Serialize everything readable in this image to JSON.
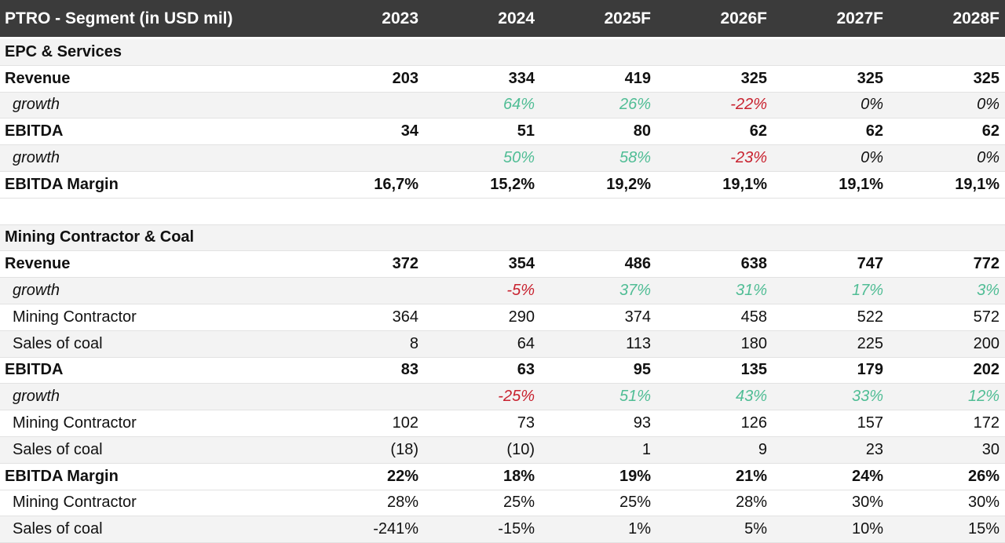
{
  "chart_data": {
    "type": "table",
    "title": "PTRO - Segment (in USD mil)",
    "columns": [
      "2023",
      "2024",
      "2025F",
      "2026F",
      "2027F",
      "2028F"
    ],
    "rows": [
      {
        "label": "EPC & Services",
        "kind": "section",
        "bg": "gray",
        "values": [
          "",
          "",
          "",
          "",
          "",
          ""
        ]
      },
      {
        "label": "Revenue",
        "kind": "total",
        "bg": "white",
        "values": [
          "203",
          "334",
          "419",
          "325",
          "325",
          "325"
        ]
      },
      {
        "label": "growth",
        "kind": "growth",
        "bg": "gray",
        "values": [
          "",
          "64%",
          "26%",
          "-22%",
          "0%",
          "0%"
        ],
        "tones": [
          "",
          "pos",
          "pos",
          "neg",
          "neutral",
          "neutral"
        ]
      },
      {
        "label": "EBITDA",
        "kind": "total",
        "bg": "white",
        "values": [
          "34",
          "51",
          "80",
          "62",
          "62",
          "62"
        ]
      },
      {
        "label": "growth",
        "kind": "growth",
        "bg": "gray",
        "values": [
          "",
          "50%",
          "58%",
          "-23%",
          "0%",
          "0%"
        ],
        "tones": [
          "",
          "pos",
          "pos",
          "neg",
          "neutral",
          "neutral"
        ]
      },
      {
        "label": "EBITDA Margin",
        "kind": "total",
        "bg": "white",
        "values": [
          "16,7%",
          "15,2%",
          "19,2%",
          "19,1%",
          "19,1%",
          "19,1%"
        ]
      },
      {
        "label": "",
        "kind": "spacer",
        "bg": "white",
        "values": [
          "",
          "",
          "",
          "",
          "",
          ""
        ]
      },
      {
        "label": "Mining Contractor & Coal",
        "kind": "section",
        "bg": "gray",
        "values": [
          "",
          "",
          "",
          "",
          "",
          ""
        ]
      },
      {
        "label": "Revenue",
        "kind": "total",
        "bg": "white",
        "values": [
          "372",
          "354",
          "486",
          "638",
          "747",
          "772"
        ]
      },
      {
        "label": "growth",
        "kind": "growth",
        "bg": "gray",
        "values": [
          "",
          "-5%",
          "37%",
          "31%",
          "17%",
          "3%"
        ],
        "tones": [
          "",
          "neg",
          "pos",
          "pos",
          "pos",
          "pos"
        ]
      },
      {
        "label": "Mining Contractor",
        "kind": "sub",
        "bg": "white",
        "values": [
          "364",
          "290",
          "374",
          "458",
          "522",
          "572"
        ]
      },
      {
        "label": "Sales of coal",
        "kind": "sub",
        "bg": "gray",
        "values": [
          "8",
          "64",
          "113",
          "180",
          "225",
          "200"
        ]
      },
      {
        "label": "EBITDA",
        "kind": "total",
        "bg": "white",
        "values": [
          "83",
          "63",
          "95",
          "135",
          "179",
          "202"
        ]
      },
      {
        "label": "growth",
        "kind": "growth",
        "bg": "gray",
        "values": [
          "",
          "-25%",
          "51%",
          "43%",
          "33%",
          "12%"
        ],
        "tones": [
          "",
          "neg",
          "pos",
          "pos",
          "pos",
          "pos"
        ]
      },
      {
        "label": "Mining Contractor",
        "kind": "sub",
        "bg": "white",
        "values": [
          "102",
          "73",
          "93",
          "126",
          "157",
          "172"
        ]
      },
      {
        "label": "Sales of coal",
        "kind": "sub",
        "bg": "gray",
        "values": [
          "(18)",
          "(10)",
          "1",
          "9",
          "23",
          "30"
        ]
      },
      {
        "label": "EBITDA Margin",
        "kind": "total",
        "bg": "white",
        "values": [
          "22%",
          "18%",
          "19%",
          "21%",
          "24%",
          "26%"
        ]
      },
      {
        "label": "Mining Contractor",
        "kind": "sub",
        "bg": "white",
        "values": [
          "28%",
          "25%",
          "25%",
          "28%",
          "30%",
          "30%"
        ]
      },
      {
        "label": "Sales of coal",
        "kind": "sub",
        "bg": "gray",
        "values": [
          "-241%",
          "-15%",
          "1%",
          "5%",
          "10%",
          "15%"
        ]
      }
    ],
    "colors": {
      "positive": "#50bd95",
      "negative": "#c8222f",
      "header_bg": "#3b3b3b",
      "header_text": "#ffffff",
      "stripe": "#f3f3f3"
    }
  }
}
